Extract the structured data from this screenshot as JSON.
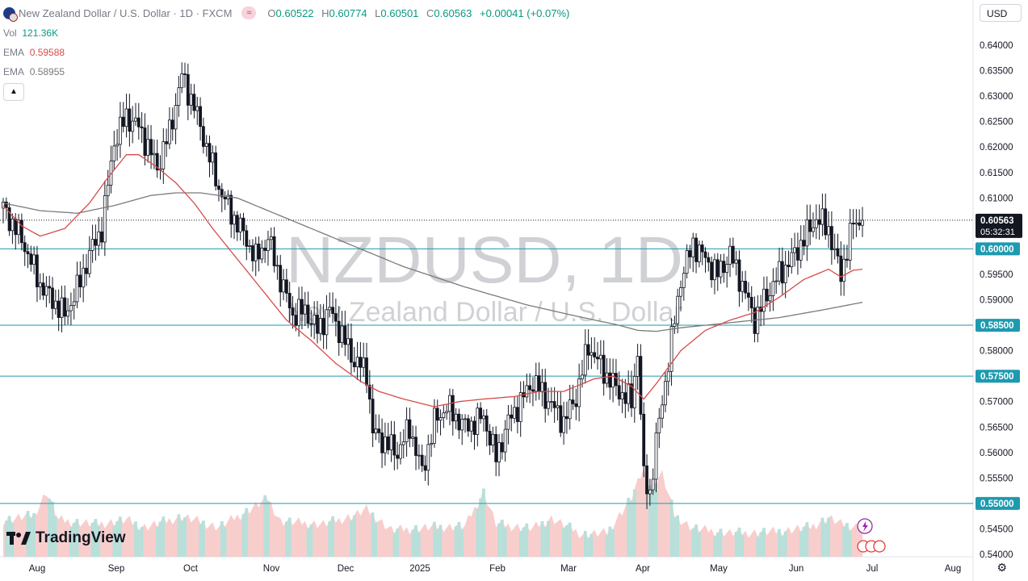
{
  "header": {
    "symbol_title": "New Zealand Dollar / U.S. Dollar · 1D · FXCM",
    "open_label": "O",
    "open": "0.60522",
    "high_label": "H",
    "high": "0.60774",
    "low_label": "L",
    "low": "0.60501",
    "close_label": "C",
    "close": "0.60563",
    "change": "+0.00041 (+0.07%)",
    "pill_icon": "wave-icon"
  },
  "indicators": {
    "vol_label": "Vol",
    "vol_value": "121.36K",
    "ema1_label": "EMA",
    "ema1_value": "0.59588",
    "ema1_color": "#d84a4a",
    "ema2_label": "EMA",
    "ema2_value": "0.58955",
    "ema2_color": "#7a7a7a"
  },
  "currency_button": "USD",
  "branding": "TradingView",
  "watermark": {
    "symbol": "NZDUSD, 1D",
    "name": "New Zealand Dollar / U.S. Dollar"
  },
  "chart_data": {
    "type": "candlestick",
    "y_ticks": [
      "0.64000",
      "0.63500",
      "0.63000",
      "0.62500",
      "0.62000",
      "0.61500",
      "0.61000",
      "0.60500",
      "0.60000",
      "0.59500",
      "0.59000",
      "0.58500",
      "0.58000",
      "0.57500",
      "0.57000",
      "0.56500",
      "0.56000",
      "0.55500",
      "0.55000",
      "0.54500",
      "0.54000"
    ],
    "ylim": [
      0.54,
      0.641
    ],
    "x_ticks": [
      "Aug",
      "Sep",
      "Oct",
      "Nov",
      "Dec",
      "2025",
      "Feb",
      "Mar",
      "Apr",
      "May",
      "Jun",
      "Jul",
      "Aug"
    ],
    "price_label": {
      "value": "0.60563",
      "countdown": "05:32:31",
      "price": 0.60563
    },
    "horizontal_levels": [
      {
        "label": "0.60000",
        "value": 0.6
      },
      {
        "label": "0.58500",
        "value": 0.585
      },
      {
        "label": "0.57500",
        "value": 0.575
      },
      {
        "label": "0.55000",
        "value": 0.55
      }
    ],
    "candle_path": [
      [
        0,
        0.608
      ],
      [
        6,
        0.602
      ],
      [
        12,
        0.593
      ],
      [
        20,
        0.587
      ],
      [
        24,
        0.592
      ],
      [
        28,
        0.599
      ],
      [
        32,
        0.604
      ],
      [
        36,
        0.621
      ],
      [
        40,
        0.626
      ],
      [
        44,
        0.624
      ],
      [
        50,
        0.616
      ],
      [
        54,
        0.623
      ],
      [
        58,
        0.634
      ],
      [
        62,
        0.628
      ],
      [
        66,
        0.62
      ],
      [
        70,
        0.612
      ],
      [
        74,
        0.607
      ],
      [
        78,
        0.603
      ],
      [
        82,
        0.598
      ],
      [
        86,
        0.602
      ],
      [
        90,
        0.594
      ],
      [
        94,
        0.587
      ],
      [
        98,
        0.588
      ],
      [
        102,
        0.584
      ],
      [
        106,
        0.588
      ],
      [
        110,
        0.583
      ],
      [
        114,
        0.578
      ],
      [
        118,
        0.576
      ],
      [
        120,
        0.564
      ],
      [
        124,
        0.562
      ],
      [
        128,
        0.56
      ],
      [
        132,
        0.565
      ],
      [
        136,
        0.556
      ],
      [
        140,
        0.566
      ],
      [
        144,
        0.569
      ],
      [
        150,
        0.565
      ],
      [
        156,
        0.567
      ],
      [
        160,
        0.559
      ],
      [
        164,
        0.566
      ],
      [
        168,
        0.57
      ],
      [
        172,
        0.574
      ],
      [
        176,
        0.571
      ],
      [
        182,
        0.566
      ],
      [
        186,
        0.571
      ],
      [
        190,
        0.581
      ],
      [
        196,
        0.575
      ],
      [
        200,
        0.572
      ],
      [
        204,
        0.57
      ],
      [
        206,
        0.58
      ],
      [
        208,
        0.555
      ],
      [
        210,
        0.552
      ],
      [
        212,
        0.562
      ],
      [
        216,
        0.578
      ],
      [
        220,
        0.594
      ],
      [
        224,
        0.601
      ],
      [
        228,
        0.598
      ],
      [
        232,
        0.595
      ],
      [
        236,
        0.599
      ],
      [
        240,
        0.593
      ],
      [
        244,
        0.586
      ],
      [
        248,
        0.591
      ],
      [
        252,
        0.595
      ],
      [
        256,
        0.598
      ],
      [
        260,
        0.602
      ],
      [
        264,
        0.606
      ],
      [
        268,
        0.604
      ],
      [
        270,
        0.599
      ],
      [
        272,
        0.595
      ],
      [
        276,
        0.605
      ],
      [
        279,
        0.6056
      ]
    ],
    "trading_days": 280,
    "ema_fast": [
      [
        0,
        0.6085
      ],
      [
        6,
        0.6045
      ],
      [
        12,
        0.6025
      ],
      [
        20,
        0.604
      ],
      [
        28,
        0.609
      ],
      [
        34,
        0.614
      ],
      [
        40,
        0.6185
      ],
      [
        44,
        0.6185
      ],
      [
        50,
        0.616
      ],
      [
        56,
        0.613
      ],
      [
        62,
        0.609
      ],
      [
        68,
        0.604
      ],
      [
        76,
        0.598
      ],
      [
        84,
        0.592
      ],
      [
        92,
        0.586
      ],
      [
        100,
        0.582
      ],
      [
        108,
        0.5775
      ],
      [
        116,
        0.574
      ],
      [
        122,
        0.572
      ],
      [
        130,
        0.5705
      ],
      [
        140,
        0.569
      ],
      [
        148,
        0.57
      ],
      [
        156,
        0.5705
      ],
      [
        166,
        0.571
      ],
      [
        174,
        0.572
      ],
      [
        182,
        0.572
      ],
      [
        192,
        0.5745
      ],
      [
        198,
        0.575
      ],
      [
        204,
        0.573
      ],
      [
        208,
        0.5705
      ],
      [
        212,
        0.5735
      ],
      [
        220,
        0.58
      ],
      [
        228,
        0.584
      ],
      [
        236,
        0.586
      ],
      [
        244,
        0.5875
      ],
      [
        252,
        0.5905
      ],
      [
        260,
        0.594
      ],
      [
        268,
        0.596
      ],
      [
        272,
        0.5945
      ],
      [
        276,
        0.5958
      ],
      [
        279,
        0.596
      ]
    ],
    "ema_slow": [
      [
        0,
        0.609
      ],
      [
        12,
        0.6075
      ],
      [
        24,
        0.607
      ],
      [
        36,
        0.6085
      ],
      [
        48,
        0.6105
      ],
      [
        56,
        0.611
      ],
      [
        64,
        0.611
      ],
      [
        76,
        0.61
      ],
      [
        90,
        0.6065
      ],
      [
        110,
        0.6015
      ],
      [
        130,
        0.5965
      ],
      [
        150,
        0.5925
      ],
      [
        170,
        0.589
      ],
      [
        186,
        0.5868
      ],
      [
        200,
        0.585
      ],
      [
        206,
        0.584
      ],
      [
        212,
        0.5838
      ],
      [
        220,
        0.5845
      ],
      [
        236,
        0.5855
      ],
      [
        252,
        0.5865
      ],
      [
        266,
        0.588
      ],
      [
        279,
        0.5895
      ]
    ],
    "volume_max": 150,
    "volume_path": [
      [
        0,
        62
      ],
      [
        10,
        70
      ],
      [
        14,
        110
      ],
      [
        18,
        62
      ],
      [
        30,
        55
      ],
      [
        40,
        62
      ],
      [
        46,
        50
      ],
      [
        58,
        68
      ],
      [
        70,
        50
      ],
      [
        86,
        98
      ],
      [
        90,
        60
      ],
      [
        104,
        55
      ],
      [
        114,
        70
      ],
      [
        118,
        80
      ],
      [
        126,
        45
      ],
      [
        140,
        50
      ],
      [
        150,
        52
      ],
      [
        156,
        110
      ],
      [
        160,
        55
      ],
      [
        172,
        48
      ],
      [
        178,
        65
      ],
      [
        188,
        38
      ],
      [
        196,
        40
      ],
      [
        204,
        100
      ],
      [
        208,
        148
      ],
      [
        210,
        120
      ],
      [
        214,
        140
      ],
      [
        218,
        70
      ],
      [
        224,
        48
      ],
      [
        236,
        40
      ],
      [
        250,
        42
      ],
      [
        262,
        50
      ],
      [
        268,
        66
      ],
      [
        272,
        55
      ],
      [
        279,
        50
      ]
    ]
  }
}
